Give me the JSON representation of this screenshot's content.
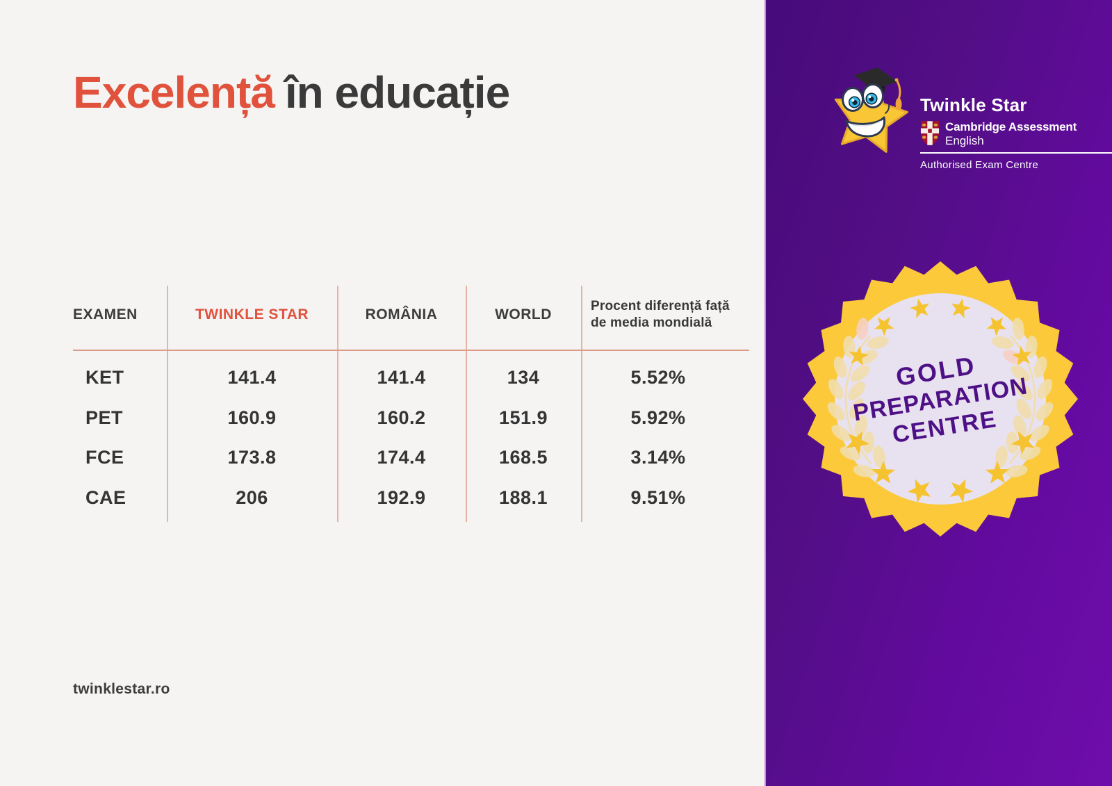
{
  "slide": {
    "title": {
      "accent": "Excelență",
      "rest": "în educație"
    },
    "footer_link": "twinklestar.ro"
  },
  "table": {
    "headers": {
      "exam": "EXAMEN",
      "twinkle_star": "TWINKLE STAR",
      "romania": "ROMÂNIA",
      "world": "WORLD",
      "diff": "Procent diferență față de media mondială"
    },
    "rows": [
      {
        "exam": "KET",
        "twinkle_star": "141.4",
        "romania": "141.4",
        "world": "134",
        "diff": "5.52%"
      },
      {
        "exam": "PET",
        "twinkle_star": "160.9",
        "romania": "160.2",
        "world": "151.9",
        "diff": "5.92%"
      },
      {
        "exam": "FCE",
        "twinkle_star": "173.8",
        "romania": "174.4",
        "world": "168.5",
        "diff": "3.14%"
      },
      {
        "exam": "CAE",
        "twinkle_star": "206",
        "romania": "192.9",
        "world": "188.1",
        "diff": "9.51%"
      }
    ]
  },
  "logo": {
    "brand": "Twinkle Star",
    "org_line1": "Cambridge Assessment",
    "org_line2": "English",
    "tagline": "Authorised Exam Centre"
  },
  "badge": {
    "line1": "GOLD",
    "line2": "PREPARATION",
    "line3": "CENTRE"
  },
  "colors": {
    "accent_red": "#e0523c",
    "text_dark": "#3a3a3a",
    "panel_purple_dark": "#470b7a",
    "panel_purple_bright": "#6f0dab",
    "badge_gold": "#fbc93a",
    "badge_star_gold": "#f6c330",
    "badge_inner": "#e8e1f0",
    "badge_text_purple": "#4e1086",
    "leaf_pale_gold": "#f1ddab",
    "leaf_pink": "#f6cfc2",
    "mascot_yellow": "#f9c636",
    "divider_salmon": "#e6b3a7"
  }
}
